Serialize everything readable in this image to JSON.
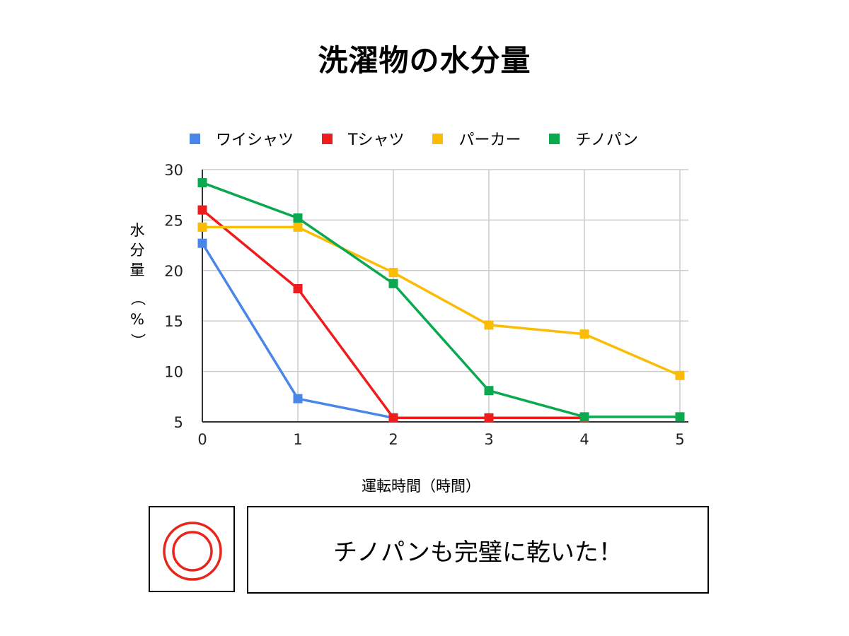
{
  "title": "洗濯物の水分量",
  "ylabel": {
    "chars": [
      "水",
      "分",
      "量"
    ],
    "open_paren": "（",
    "unit": "%",
    "close_paren": "）"
  },
  "xlabel": "運転時間（時間）",
  "comment": "チノパンも完璧に乾いた！",
  "icon": {
    "name": "double-circle-icon",
    "color": "#e8251b"
  },
  "chart_data": {
    "type": "line",
    "x": [
      0,
      1,
      2,
      3,
      4,
      5
    ],
    "x_tick_labels": [
      "0",
      "1",
      "2",
      "3",
      "4",
      "5"
    ],
    "y_tick_labels": [
      "5",
      "10",
      "15",
      "20",
      "25",
      "30"
    ],
    "xlim": [
      0,
      5
    ],
    "ylim": [
      5,
      30
    ],
    "grid": true,
    "legend_position": "top",
    "series": [
      {
        "name": "ワイシャツ",
        "color": "#4a86e8",
        "values": [
          22.7,
          7.3,
          5.4,
          null,
          null,
          null
        ]
      },
      {
        "name": "Tシャツ",
        "color": "#ee1c1c",
        "values": [
          26.0,
          18.2,
          5.4,
          5.4,
          5.4,
          null
        ]
      },
      {
        "name": "パーカー",
        "color": "#fbbc04",
        "values": [
          24.3,
          24.3,
          19.8,
          14.6,
          13.7,
          9.6
        ]
      },
      {
        "name": "チノパン",
        "color": "#0aa84f",
        "values": [
          28.7,
          25.2,
          18.7,
          8.1,
          5.5,
          5.5
        ]
      }
    ]
  }
}
